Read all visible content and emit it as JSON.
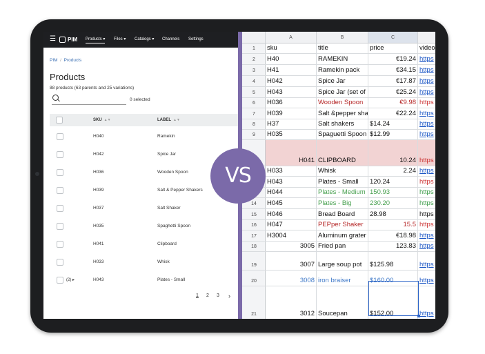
{
  "pim": {
    "brand": "PIM",
    "nav": [
      "Products ▾",
      "Files ▾",
      "Catalogs ▾",
      "Channels",
      "Settings"
    ],
    "breadcrumb": [
      "PIM",
      "Products"
    ],
    "title": "Products",
    "subtitle": "88 products (63 parents and 25 variations)",
    "selected": "0 selected",
    "columns": [
      "SKU",
      "LABEL"
    ],
    "rows": [
      {
        "sku": "H040",
        "label": "Ramekin"
      },
      {
        "sku": "H042",
        "label": "Spice Jar"
      },
      {
        "sku": "H036",
        "label": "Wooden Spoon"
      },
      {
        "sku": "H039",
        "label": "Salt & Pepper Shakers"
      },
      {
        "sku": "H037",
        "label": "Salt Shaker"
      },
      {
        "sku": "H035",
        "label": "Spaghetti Spoon"
      },
      {
        "sku": "H041",
        "label": "Clipboard"
      },
      {
        "sku": "H033",
        "label": "Whisk"
      },
      {
        "sku": "H043",
        "label": "Plates - Small",
        "variants": "(2) ▸"
      }
    ],
    "pages": [
      "1",
      "2",
      "3"
    ],
    "next": "›"
  },
  "vs": "VS",
  "sheet": {
    "columns": [
      "A",
      "B",
      "C",
      ""
    ],
    "rows": [
      {
        "n": "1",
        "a": "sku",
        "b": "title",
        "c": "price",
        "d": "video"
      },
      {
        "n": "2",
        "a": "H40",
        "b": "RAMEKIN",
        "c": "€19.24",
        "d": "https"
      },
      {
        "n": "3",
        "a": "H41",
        "b": "Ramekin pack",
        "c": "€34.15",
        "d": "https"
      },
      {
        "n": "4",
        "a": "H042",
        "b": "Spice Jar",
        "c": "€17.87",
        "d": "https"
      },
      {
        "n": "5",
        "a": "H043",
        "b": "Spice Jar (set of",
        "c": "€25.24",
        "d": "https"
      },
      {
        "n": "6",
        "a": "H036",
        "b": "Wooden Spoon",
        "c": "€9.98",
        "d": "https"
      },
      {
        "n": "7",
        "a": "H039",
        "b": "Salt &pepper sha",
        "c": "€22.24",
        "d": "https"
      },
      {
        "n": "8",
        "a": "H37",
        "b": "Salt shakers",
        "c": "$14.24",
        "d": "https"
      },
      {
        "n": "9",
        "a": "H035",
        "b": "Spaguetti Spoon",
        "c": "$12.99",
        "d": "https"
      },
      {
        "n": "10",
        "a": "H041",
        "b": "CLIPBOARD",
        "c": "10.24",
        "d": "https"
      },
      {
        "n": "11",
        "a": "H033",
        "b": "Whisk",
        "c": "2.24",
        "d": "https"
      },
      {
        "n": "12",
        "a": "H043",
        "b": "Plates - Small",
        "c": "120.24",
        "d": "https"
      },
      {
        "n": "13",
        "a": "H044",
        "b": "Plates - Medium",
        "c": "150.93",
        "d": "https"
      },
      {
        "n": "14",
        "a": "H045",
        "b": "Plates - Big",
        "c": "230.20",
        "d": "https"
      },
      {
        "n": "15",
        "a": "H046",
        "b": "Bread Board",
        "c": "28.98",
        "d": "https"
      },
      {
        "n": "16",
        "a": "H047",
        "b": "PEPper Shaker",
        "c": "15.5",
        "d": "https"
      },
      {
        "n": "17",
        "a": "H3004",
        "b": "Aluminum grater",
        "c": "€18.98",
        "d": "https"
      },
      {
        "n": "18",
        "a": "3005",
        "b": "Fried pan",
        "c": "123.83",
        "d": "https"
      },
      {
        "n": "19",
        "a": "3007",
        "b": "Large soup pot",
        "c": "$125.98",
        "d": "https"
      },
      {
        "n": "20",
        "a": "3008",
        "b": "iron braiser",
        "c": "$160.00",
        "d": "https"
      },
      {
        "n": "21",
        "a": "3012",
        "b": "Soucepan",
        "c": "$152.00",
        "d": "https"
      }
    ]
  },
  "colors": {
    "accent": "#7b6aa9",
    "nav_bg": "#1e1f22",
    "highlight_row": "#f2d3d3",
    "link": "#1a55c4"
  }
}
